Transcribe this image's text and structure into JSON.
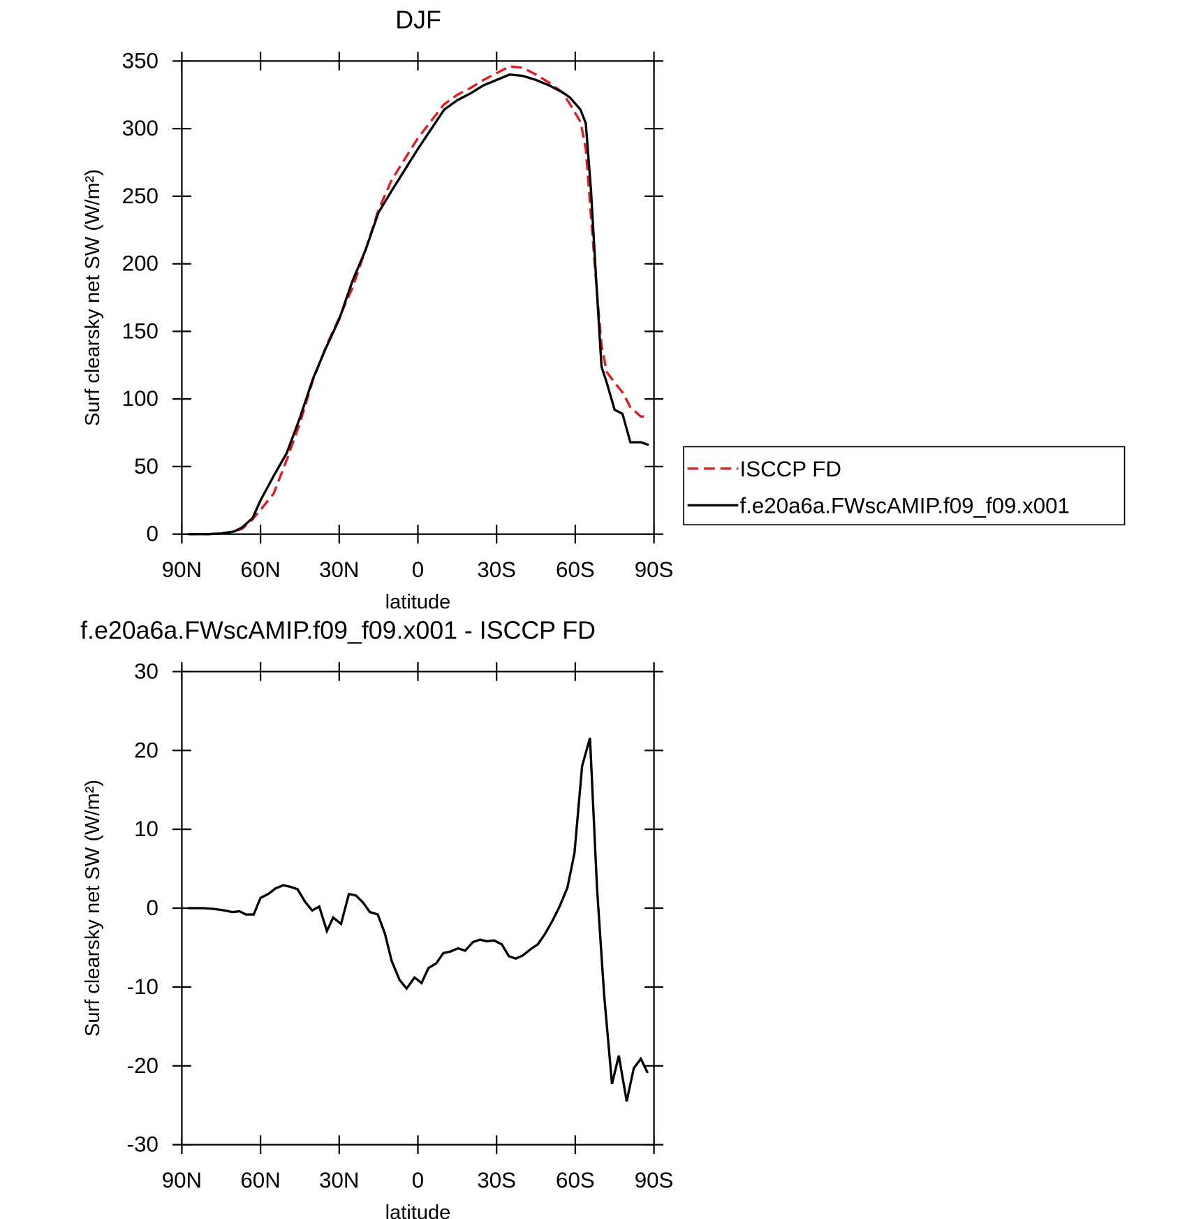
{
  "chart_data": [
    {
      "type": "line",
      "title": "DJF",
      "xlabel": "latitude",
      "ylabel": "Surf clearsky net SW (W/m²)",
      "x": [
        87.5,
        80,
        75,
        70,
        67,
        63,
        60,
        55,
        50,
        45,
        40,
        35,
        30,
        25,
        20,
        15,
        10,
        0,
        -10,
        -15,
        -20,
        -25,
        -30,
        -35,
        -40,
        -45,
        -50,
        -55,
        -58,
        -62,
        -64,
        -66,
        -68,
        -70,
        -72,
        -75,
        -78,
        -81,
        -85,
        -88
      ],
      "series": [
        {
          "name": "ISCCP FD",
          "color": "#e41a1c",
          "dash": true,
          "values": [
            0,
            0,
            0.5,
            2,
            4,
            11,
            18,
            30,
            55,
            82,
            114,
            139,
            160,
            182,
            210,
            240,
            262,
            293,
            318,
            325,
            330,
            336,
            341,
            346,
            345,
            340,
            334,
            327,
            318,
            305,
            285,
            235,
            185,
            140,
            120,
            112,
            105,
            94,
            87,
            87
          ]
        },
        {
          "name": "f.e20a6a.FWscAMIP.f09_f09.x001",
          "color": "#000000",
          "dash": false,
          "values": [
            0,
            0,
            0.5,
            2,
            5,
            12,
            25,
            43,
            60,
            86,
            115,
            138,
            159,
            187,
            210,
            238,
            254,
            285,
            314,
            321,
            326,
            332,
            336,
            340,
            339,
            336,
            332,
            327,
            323,
            314,
            304,
            254,
            187,
            124,
            112,
            92,
            89,
            68,
            68,
            66
          ]
        }
      ],
      "xlim": [
        90,
        -90
      ],
      "xticks": [
        {
          "value": 90,
          "label": "90N"
        },
        {
          "value": 60,
          "label": "60N"
        },
        {
          "value": 30,
          "label": "30N"
        },
        0,
        {
          "value": -30,
          "label": "30S"
        },
        {
          "value": -60,
          "label": "60S"
        },
        {
          "value": -90,
          "label": "90S"
        }
      ],
      "ylim": [
        0,
        350
      ],
      "yticks": [
        0,
        50,
        100,
        150,
        200,
        250,
        300,
        350
      ],
      "legend": "right"
    },
    {
      "type": "line",
      "title": "f.e20a6a.FWscAMIP.f09_f09.x001 - ISCCP FD",
      "xlabel": "latitude",
      "ylabel": "Surf clearsky net SW (W/m²)",
      "x": [
        87.6,
        82,
        77.8,
        73.6,
        70.7,
        68,
        65.6,
        62.6,
        60,
        57,
        54.3,
        51.3,
        48.6,
        45.9,
        43,
        40.3,
        37.6,
        34.7,
        32.3,
        29.3,
        26.3,
        23.6,
        20.9,
        18.3,
        15.3,
        12.6,
        10,
        7,
        4.3,
        1.3,
        -1.4,
        -4,
        -7,
        -9.7,
        -12.4,
        -15.3,
        -18,
        -21,
        -23.7,
        -26.3,
        -29,
        -32,
        -34.7,
        -37.3,
        -40,
        -43,
        -45.7,
        -48.4,
        -51.3,
        -54,
        -57,
        -59.7,
        -62.6,
        -65.6,
        -68.3,
        -71,
        -74,
        -76.6,
        -79.6,
        -82.3,
        -85,
        -87.6
      ],
      "series": [
        {
          "color": "#000000",
          "dash": false,
          "values": [
            0,
            0,
            -0.1,
            -0.3,
            -0.5,
            -0.4,
            -0.8,
            -0.8,
            1.3,
            1.8,
            2.5,
            2.9,
            2.7,
            2.4,
            0.8,
            -0.3,
            0.2,
            -2.9,
            -1.2,
            -2,
            1.8,
            1.6,
            0.7,
            -0.5,
            -0.8,
            -3.2,
            -6.7,
            -9.1,
            -10.2,
            -8.8,
            -9.5,
            -7.6,
            -7,
            -5.7,
            -5.5,
            -5.1,
            -5.4,
            -4.3,
            -4,
            -4.2,
            -4.1,
            -4.6,
            -6.1,
            -6.4,
            -6,
            -5.2,
            -4.6,
            -3.3,
            -1.6,
            0.2,
            2.6,
            7,
            18,
            21.6,
            2.5,
            -11,
            -22.3,
            -18.7,
            -24.5,
            -20.3,
            -19.1,
            -20.9
          ]
        }
      ],
      "xlim": [
        90,
        -90
      ],
      "xticks": [
        {
          "value": 90,
          "label": "90N"
        },
        {
          "value": 60,
          "label": "60N"
        },
        {
          "value": 30,
          "label": "30N"
        },
        0,
        {
          "value": -30,
          "label": "30S"
        },
        {
          "value": -60,
          "label": "60S"
        },
        {
          "value": -90,
          "label": "90S"
        }
      ],
      "ylim": [
        -30,
        30
      ],
      "yticks": [
        -30,
        -20,
        -10,
        0,
        10,
        20,
        30
      ]
    }
  ]
}
